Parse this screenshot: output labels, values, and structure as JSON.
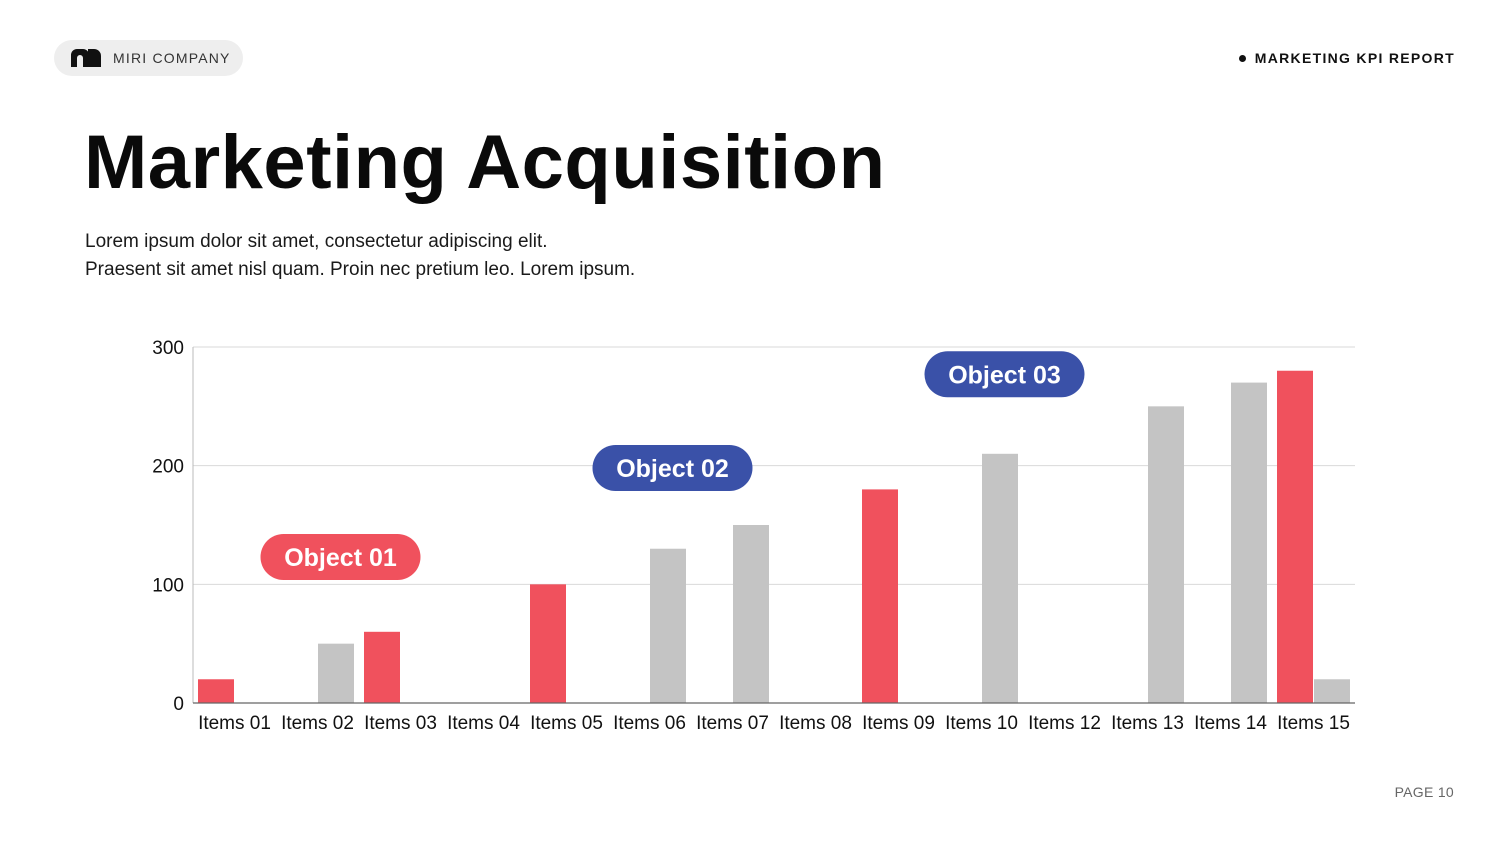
{
  "header": {
    "brand_name": "MIRI COMPANY",
    "report_label": "MARKETING KPI REPORT",
    "logo_icon": "arch-logo-icon"
  },
  "title": "Marketing Acquisition",
  "subtitle_lines": [
    "Lorem ipsum dolor sit amet, consectetur adipiscing elit.",
    "Praesent sit amet nisl quam. Proin nec pretium leo. Lorem ipsum."
  ],
  "footer": {
    "page_label": "PAGE 10"
  },
  "colors": {
    "red": "#F0515D",
    "gray": "#C4C4C4",
    "blue": "#3A51A8",
    "grid": "#D9D9D9"
  },
  "chart_data": {
    "type": "bar",
    "categories": [
      "Items 01",
      "Items 02",
      "Items 03",
      "Items 04",
      "Items 05",
      "Items 06",
      "Items 07",
      "Items 08",
      "Items 09",
      "Items 10",
      "Items 12",
      "Items 13",
      "Items 14",
      "Items 15"
    ],
    "series": [
      {
        "color": "#F0515D",
        "values": [
          20,
          null,
          60,
          null,
          100,
          null,
          null,
          null,
          180,
          null,
          null,
          null,
          null,
          280
        ]
      },
      {
        "color": "#C4C4C4",
        "values": [
          null,
          50,
          null,
          null,
          null,
          130,
          150,
          null,
          null,
          210,
          null,
          250,
          270,
          20
        ]
      }
    ],
    "yticks": [
      0,
      100,
      200,
      300
    ],
    "ylim": [
      0,
      300
    ],
    "xlabel": "",
    "ylabel": "",
    "grid": true,
    "annotations": [
      {
        "text": "Object 01",
        "color": "#F0515D",
        "category": "Items 02",
        "y": 123
      },
      {
        "text": "Object 02",
        "color": "#3A51A8",
        "category": "Items 06",
        "y": 198
      },
      {
        "text": "Object 03",
        "color": "#3A51A8",
        "category": "Items 10",
        "y": 277
      }
    ]
  }
}
